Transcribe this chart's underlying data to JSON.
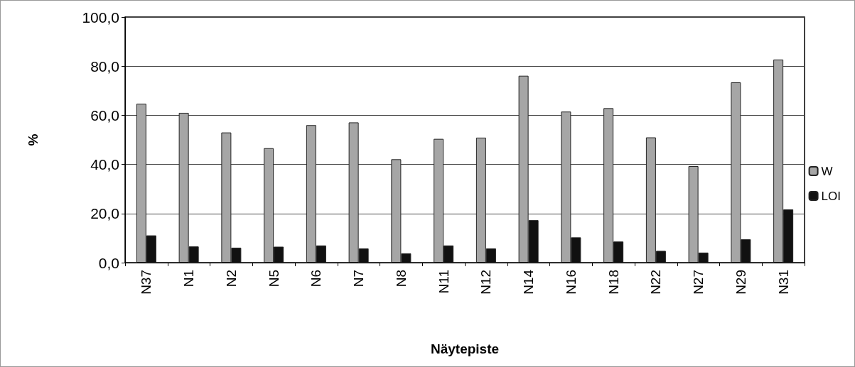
{
  "chart_data": {
    "type": "bar",
    "xlabel": "Näytepiste",
    "ylabel": "%",
    "categories": [
      "N37",
      "N1",
      "N2",
      "N5",
      "N6",
      "N7",
      "N8",
      "N11",
      "N12",
      "N14",
      "N16",
      "N18",
      "N22",
      "N27",
      "N29",
      "N31"
    ],
    "series": [
      {
        "name": "W",
        "color": "#a6a6a6",
        "values": [
          64.7,
          61.0,
          53.0,
          46.6,
          56.0,
          57.1,
          42.1,
          50.4,
          50.9,
          76.1,
          61.5,
          62.9,
          51.0,
          39.3,
          73.4,
          82.7
        ]
      },
      {
        "name": "LOI",
        "color": "#111111",
        "values": [
          11.1,
          6.6,
          6.1,
          6.5,
          7.0,
          5.8,
          3.8,
          7.0,
          5.8,
          17.3,
          10.3,
          8.6,
          4.8,
          4.1,
          9.5,
          21.7
        ]
      }
    ],
    "ylim": [
      0,
      100
    ],
    "yticks": [
      {
        "value": 0,
        "label": "0,0"
      },
      {
        "value": 20,
        "label": "20,0"
      },
      {
        "value": 40,
        "label": "40,0"
      },
      {
        "value": 60,
        "label": "60,0"
      },
      {
        "value": 80,
        "label": "80,0"
      },
      {
        "value": 100,
        "label": "100,0"
      }
    ],
    "grid": "y",
    "legend": "right"
  }
}
